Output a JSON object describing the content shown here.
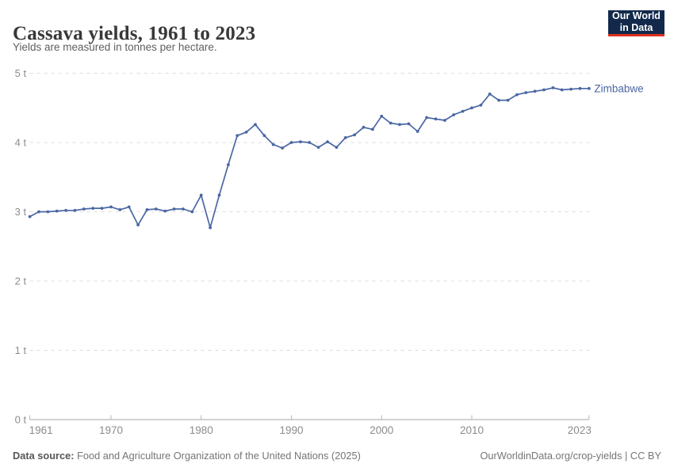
{
  "header": {
    "title": "Cassava yields, 1961 to 2023",
    "subtitle": "Yields are measured in tonnes per hectare.",
    "logo": {
      "line1": "Our World",
      "line2": "in Data"
    }
  },
  "series_label": "Zimbabwe",
  "colors": {
    "line": "#4a67a3",
    "grid": "#dcdcdc",
    "axis": "#a5a5a5",
    "tick": "#b5b5b5",
    "tick_label": "#8c8c8c",
    "logo_bg": "#12294b",
    "logo_red": "#e0301e"
  },
  "footer": {
    "source_label": "Data source:",
    "source_text": " Food and Agriculture Organization of the United Nations (2025)",
    "credit": "OurWorldinData.org/crop-yields | CC BY"
  },
  "chart_data": {
    "type": "line",
    "title": "Cassava yields, 1961 to 2023",
    "xlabel": "",
    "ylabel": "tonnes per hectare",
    "ylim": [
      0,
      5
    ],
    "xlim": [
      1961,
      2023
    ],
    "grid": "dashed-horizontal",
    "legend": "end-of-line-label",
    "y_ticks": [
      {
        "value": 0,
        "label": "0 t"
      },
      {
        "value": 1,
        "label": "1 t"
      },
      {
        "value": 2,
        "label": "2 t"
      },
      {
        "value": 3,
        "label": "3 t"
      },
      {
        "value": 4,
        "label": "4 t"
      },
      {
        "value": 5,
        "label": "5 t"
      }
    ],
    "x_ticks": [
      {
        "value": 1961,
        "label": "1961"
      },
      {
        "value": 1970,
        "label": "1970"
      },
      {
        "value": 1980,
        "label": "1980"
      },
      {
        "value": 1990,
        "label": "1990"
      },
      {
        "value": 2000,
        "label": "2000"
      },
      {
        "value": 2010,
        "label": "2010"
      },
      {
        "value": 2023,
        "label": "2023"
      }
    ],
    "x": [
      1961,
      1962,
      1963,
      1964,
      1965,
      1966,
      1967,
      1968,
      1969,
      1970,
      1971,
      1972,
      1973,
      1974,
      1975,
      1976,
      1977,
      1978,
      1979,
      1980,
      1981,
      1982,
      1983,
      1984,
      1985,
      1986,
      1987,
      1988,
      1989,
      1990,
      1991,
      1992,
      1993,
      1994,
      1995,
      1996,
      1997,
      1998,
      1999,
      2000,
      2001,
      2002,
      2003,
      2004,
      2005,
      2006,
      2007,
      2008,
      2009,
      2010,
      2011,
      2012,
      2013,
      2014,
      2015,
      2016,
      2017,
      2018,
      2019,
      2020,
      2021,
      2022,
      2023
    ],
    "series": [
      {
        "name": "Zimbabwe",
        "values": [
          2.93,
          3.0,
          3.0,
          3.01,
          3.02,
          3.02,
          3.04,
          3.05,
          3.05,
          3.07,
          3.03,
          3.07,
          2.81,
          3.03,
          3.04,
          3.01,
          3.04,
          3.04,
          3.0,
          3.24,
          2.77,
          3.24,
          3.68,
          4.1,
          4.15,
          4.26,
          4.1,
          3.97,
          3.92,
          4.0,
          4.01,
          4.0,
          3.93,
          4.01,
          3.93,
          4.07,
          4.11,
          4.22,
          4.19,
          4.38,
          4.28,
          4.26,
          4.27,
          4.16,
          4.36,
          4.34,
          4.32,
          4.4,
          4.45,
          4.5,
          4.54,
          4.7,
          4.61,
          4.61,
          4.69,
          4.72,
          4.74,
          4.76,
          4.79,
          4.76,
          4.77,
          4.78,
          4.78
        ]
      }
    ]
  }
}
